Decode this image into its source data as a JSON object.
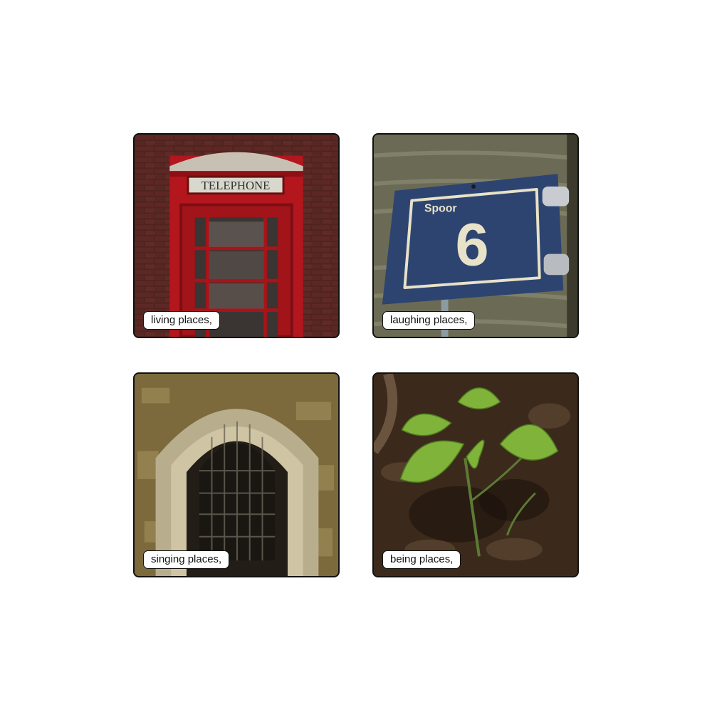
{
  "tiles": [
    {
      "caption": "living places,",
      "sign": "TELEPHONE"
    },
    {
      "caption": "laughing places,",
      "sign_word": "Spoor",
      "sign_number": "6"
    },
    {
      "caption": "singing places,"
    },
    {
      "caption": "being places,"
    }
  ]
}
